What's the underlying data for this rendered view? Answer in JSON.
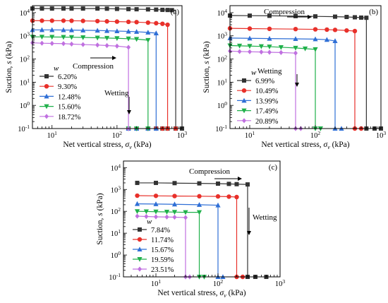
{
  "chart_data": [
    {
      "type": "line",
      "panel_label": "(a)",
      "xlabel": "Net vertical stress, σv (kPa)",
      "ylabel": "Suction, s (kPa)",
      "x_scale": "log",
      "y_scale": "log",
      "xlim": [
        5,
        1000
      ],
      "ylim": [
        0.1,
        20000
      ],
      "x_ticks": [
        "10^1",
        "10^2",
        "10^3"
      ],
      "y_ticks": [
        "10^-1",
        "10^0",
        "10^1",
        "10^2",
        "10^3",
        "10^4"
      ],
      "legend_title": "w",
      "legend_position": "bottom-left",
      "annotations": [
        "Compression",
        "Wetting"
      ],
      "series": [
        {
          "name": "6.20%",
          "color": "#333333",
          "marker": "square",
          "compression": {
            "x": [
              5,
              7,
              10,
              15,
              20,
              30,
              50,
              70,
              100,
              150,
              200,
              300,
              400,
              500,
              600,
              700
            ],
            "y": [
              15000,
              15000,
              15000,
              15000,
              15000,
              15000,
              15000,
              14800,
              14500,
              14200,
              14000,
              13800,
              13500,
              13200,
              13000,
              12800
            ]
          },
          "wetting_x": 800,
          "final": {
            "x": [
              150,
              200,
              300,
              400,
              500,
              600,
              800,
              1000
            ],
            "y": [
              0.1,
              0.1,
              0.1,
              0.1,
              0.1,
              0.1,
              0.1,
              0.1
            ]
          }
        },
        {
          "name": "9.30%",
          "color": "#e8302a",
          "marker": "circle",
          "compression": {
            "x": [
              5,
              7,
              10,
              15,
              20,
              30,
              50,
              70,
              100,
              150,
              200,
              300,
              400,
              500,
              600
            ],
            "y": [
              4500,
              4500,
              4500,
              4500,
              4450,
              4400,
              4300,
              4200,
              4100,
              4000,
              3900,
              3700,
              3500,
              3300,
              3000
            ]
          },
          "wetting_x": 600,
          "final": {
            "x": [
              150,
              200,
              300,
              400,
              500,
              600,
              800
            ],
            "y": [
              0.1,
              0.1,
              0.1,
              0.1,
              0.1,
              0.1,
              0.1
            ]
          }
        },
        {
          "name": "12.48%",
          "color": "#2f6fd6",
          "marker": "triangle-up",
          "compression": {
            "x": [
              5,
              7,
              10,
              15,
              20,
              30,
              50,
              70,
              100,
              150,
              200,
              300,
              400
            ],
            "y": [
              1800,
              1800,
              1800,
              1780,
              1760,
              1730,
              1700,
              1650,
              1600,
              1550,
              1500,
              1400,
              1300
            ]
          },
          "wetting_x": 400,
          "final": {
            "x": [
              150,
              200,
              300,
              400
            ],
            "y": [
              0.1,
              0.1,
              0.1,
              0.1
            ]
          }
        },
        {
          "name": "15.60%",
          "color": "#1fb04a",
          "marker": "triangle-down",
          "compression": {
            "x": [
              5,
              7,
              10,
              15,
              20,
              30,
              50,
              70,
              100,
              150,
              200,
              300
            ],
            "y": [
              900,
              900,
              890,
              880,
              870,
              850,
              820,
              800,
              780,
              750,
              720,
              650
            ]
          },
          "wetting_x": 300,
          "final": {
            "x": [
              150,
              200,
              300
            ],
            "y": [
              0.1,
              0.1,
              0.1
            ]
          }
        },
        {
          "name": "18.72%",
          "color": "#c070e0",
          "marker": "diamond",
          "compression": {
            "x": [
              5,
              7,
              10,
              15,
              20,
              30,
              50,
              70,
              100,
              150
            ],
            "y": [
              500,
              480,
              470,
              460,
              440,
              420,
              400,
              380,
              360,
              320
            ]
          },
          "wetting_x": 150,
          "final": {
            "x": [
              150
            ],
            "y": [
              0.1
            ]
          }
        }
      ]
    },
    {
      "type": "line",
      "panel_label": "(b)",
      "xlabel": "Net vertical stress, σv (kPa)",
      "ylabel": "Suction, s (kPa)",
      "x_scale": "log",
      "y_scale": "log",
      "xlim": [
        5,
        1000
      ],
      "ylim": [
        0.1,
        20000
      ],
      "x_ticks": [
        "10^1",
        "10^2",
        "10^3"
      ],
      "y_ticks": [
        "10^-1",
        "10^0",
        "10^1",
        "10^2",
        "10^3",
        "10^4"
      ],
      "legend_title": "w",
      "legend_position": "bottom-left",
      "annotations": [
        "Compression",
        "Wetting"
      ],
      "series": [
        {
          "name": "6.99%",
          "color": "#333333",
          "marker": "square",
          "compression": {
            "x": [
              5,
              10,
              20,
              50,
              100,
              200,
              300,
              400,
              500,
              600
            ],
            "y": [
              7500,
              7400,
              7300,
              7100,
              6900,
              6700,
              6500,
              6300,
              6100,
              6000
            ]
          },
          "wetting_x": 600,
          "final": {
            "x": [
              600,
              800,
              1000
            ],
            "y": [
              0.1,
              0.1,
              0.1
            ]
          }
        },
        {
          "name": "10.49%",
          "color": "#e8302a",
          "marker": "circle",
          "compression": {
            "x": [
              5,
              10,
              20,
              50,
              100,
              150,
              200,
              300,
              400
            ],
            "y": [
              2100,
              2050,
              2000,
              1950,
              1900,
              1850,
              1800,
              1700,
              1600
            ]
          },
          "wetting_x": 400,
          "final": {
            "x": [
              400,
              500
            ],
            "y": [
              0.1,
              0.1
            ]
          }
        },
        {
          "name": "13.99%",
          "color": "#2f6fd6",
          "marker": "triangle-up",
          "compression": {
            "x": [
              5,
              10,
              20,
              50,
              100,
              150,
              200
            ],
            "y": [
              800,
              780,
              760,
              740,
              720,
              680,
              600
            ]
          },
          "wetting_x": 200,
          "final": {
            "x": [
              200,
              250
            ],
            "y": [
              0.1,
              0.1
            ]
          }
        },
        {
          "name": "17.49%",
          "color": "#1fb04a",
          "marker": "triangle-down",
          "compression": {
            "x": [
              5,
              7,
              10,
              15,
              20,
              30,
              50,
              70,
              100
            ],
            "y": [
              380,
              370,
              360,
              350,
              340,
              320,
              300,
              280,
              260
            ]
          },
          "wetting_x": 100,
          "final": {
            "x": [
              100,
              120
            ],
            "y": [
              0.1,
              0.1
            ]
          }
        },
        {
          "name": "20.89%",
          "color": "#c070e0",
          "marker": "diamond",
          "compression": {
            "x": [
              5,
              7,
              10,
              15,
              20,
              30,
              50
            ],
            "y": [
              220,
              210,
              205,
              200,
              195,
              190,
              180
            ]
          },
          "wetting_x": 50,
          "final": {
            "x": [
              50,
              60
            ],
            "y": [
              0.1,
              0.1
            ]
          }
        }
      ]
    },
    {
      "type": "line",
      "panel_label": "(c)",
      "xlabel": "Net vertical stress, σv (kPa)",
      "ylabel": "Suction, s (kPa)",
      "x_scale": "log",
      "y_scale": "log",
      "xlim": [
        3,
        1000
      ],
      "ylim": [
        0.1,
        20000
      ],
      "x_ticks": [
        "10^1",
        "10^2",
        "10^3"
      ],
      "y_ticks": [
        "10^-1",
        "10^0",
        "10^1",
        "10^2",
        "10^3",
        "10^4"
      ],
      "legend_title": "w",
      "legend_position": "bottom-left",
      "annotations": [
        "Compression",
        "Wetting"
      ],
      "series": [
        {
          "name": "7.84%",
          "color": "#333333",
          "marker": "square",
          "compression": {
            "x": [
              5,
              10,
              20,
              50,
              100,
              150,
              200,
              300
            ],
            "y": [
              2000,
              2000,
              1950,
              1900,
              1850,
              1800,
              1750,
              1700
            ]
          },
          "wetting_x": 300,
          "final": {
            "x": [
              300,
              400,
              600
            ],
            "y": [
              0.1,
              0.1,
              0.1
            ]
          }
        },
        {
          "name": "11.74%",
          "color": "#e8302a",
          "marker": "circle",
          "compression": {
            "x": [
              5,
              10,
              20,
              50,
              100,
              150,
              200
            ],
            "y": [
              520,
              510,
              500,
              490,
              480,
              470,
              450
            ]
          },
          "wetting_x": 200,
          "final": {
            "x": [
              200,
              250
            ],
            "y": [
              0.1,
              0.1
            ]
          }
        },
        {
          "name": "15.67%",
          "color": "#2f6fd6",
          "marker": "triangle-up",
          "compression": {
            "x": [
              5,
              10,
              20,
              50,
              100
            ],
            "y": [
              220,
              215,
              210,
              200,
              190
            ]
          },
          "wetting_x": 100,
          "final": {
            "x": [
              100,
              120
            ],
            "y": [
              0.1,
              0.1
            ]
          }
        },
        {
          "name": "19.59%",
          "color": "#1fb04a",
          "marker": "triangle-down",
          "compression": {
            "x": [
              5,
              7,
              10,
              15,
              20,
              30,
              50
            ],
            "y": [
              100,
              98,
              96,
              94,
              92,
              90,
              90
            ]
          },
          "wetting_x": 50,
          "final": {
            "x": [
              50,
              60
            ],
            "y": [
              0.1,
              0.1
            ]
          }
        },
        {
          "name": "23.51%",
          "color": "#c070e0",
          "marker": "diamond",
          "compression": {
            "x": [
              5,
              7,
              10,
              15,
              20,
              30
            ],
            "y": [
              60,
              58,
              56,
              55,
              54,
              52
            ]
          },
          "wetting_x": 30,
          "final": {
            "x": [
              30,
              35
            ],
            "y": [
              0.1,
              0.1
            ]
          }
        }
      ]
    }
  ]
}
